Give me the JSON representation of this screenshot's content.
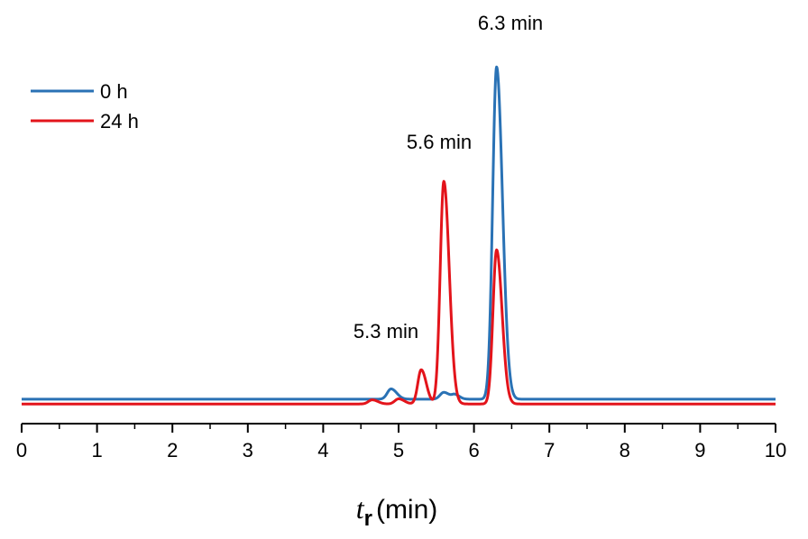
{
  "chart_data": {
    "type": "line",
    "xlabel_var": "t",
    "xlabel_sub": "r",
    "xlabel_unit": "(min)",
    "xlim": [
      0,
      10
    ],
    "x_ticks": [
      0,
      1,
      2,
      3,
      4,
      5,
      6,
      7,
      8,
      9,
      10
    ],
    "grid": false,
    "legend_position": "top-left",
    "series": [
      {
        "name": "0 h",
        "color": "#2a72b5",
        "baseline": 2.4,
        "peaks": [
          {
            "t": 4.9,
            "height": 3,
            "width": 0.05
          },
          {
            "t": 5.6,
            "height": 2,
            "width": 0.05
          },
          {
            "t": 5.75,
            "height": 1.2,
            "width": 0.04
          },
          {
            "t": 6.3,
            "height": 97,
            "width": 0.052
          }
        ]
      },
      {
        "name": "24 h",
        "color": "#e3141b",
        "baseline": 1.0,
        "peaks": [
          {
            "t": 4.65,
            "height": 1.2,
            "width": 0.05
          },
          {
            "t": 5.0,
            "height": 1.5,
            "width": 0.05
          },
          {
            "t": 5.3,
            "height": 10,
            "width": 0.045
          },
          {
            "t": 5.6,
            "height": 65,
            "width": 0.048
          },
          {
            "t": 6.3,
            "height": 45,
            "width": 0.048
          }
        ]
      }
    ],
    "annotations": [
      {
        "text": "6.3 min",
        "t": 6.3
      },
      {
        "text": "5.6 min",
        "t": 5.6
      },
      {
        "text": "5.3 min",
        "t": 5.3
      }
    ]
  }
}
